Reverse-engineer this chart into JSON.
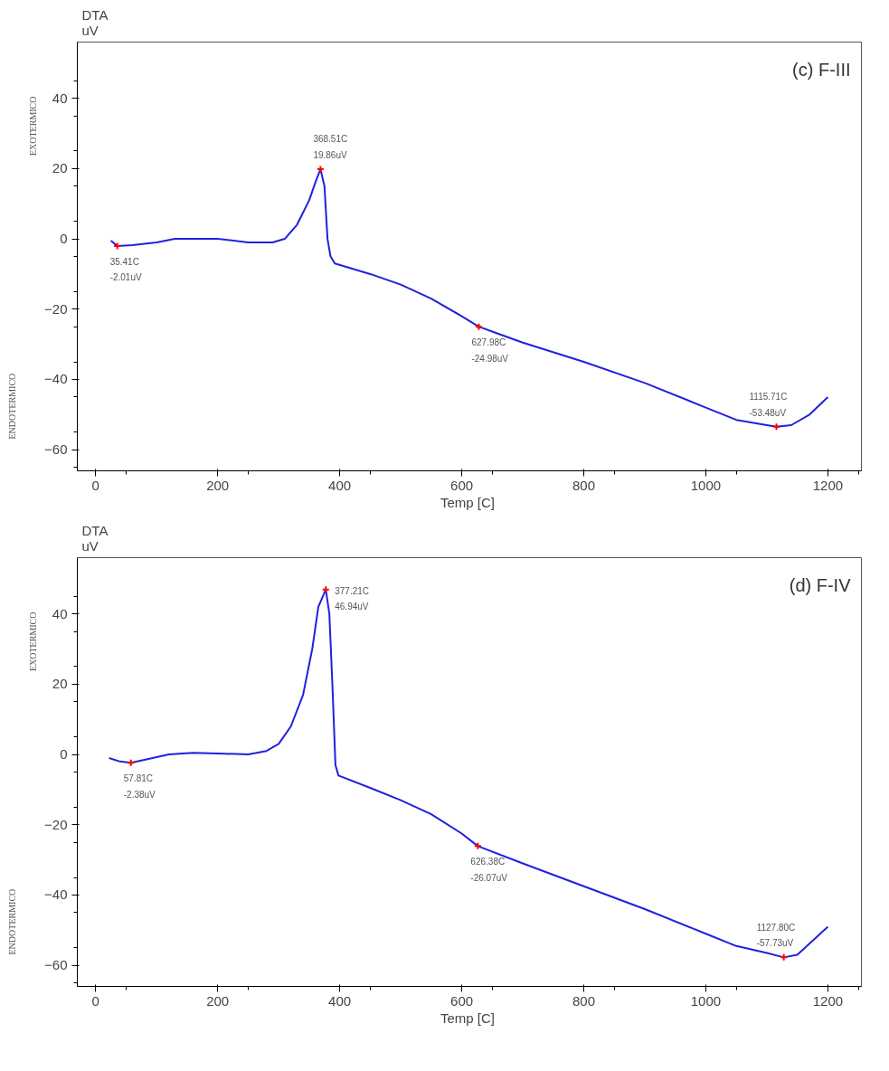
{
  "chart_data": [
    {
      "type": "line",
      "title": "(c) F-III",
      "xlabel": "Temp  [C]",
      "ylabel": "DTA\nuV",
      "xlim": [
        -30,
        1255
      ],
      "ylim": [
        -66,
        56
      ],
      "xticks": [
        0,
        200,
        400,
        600,
        800,
        1000,
        1200
      ],
      "yticks": [
        -60,
        -40,
        -20,
        0,
        20,
        40
      ],
      "grid": false,
      "series": [
        {
          "color": "#2020e0",
          "x": [
            25,
            35.41,
            60,
            100,
            130,
            200,
            250,
            290,
            310,
            330,
            350,
            360,
            368.51,
            375,
            380,
            385,
            392,
            450,
            500,
            550,
            600,
            627.98,
            660,
            700,
            800,
            900,
            1000,
            1050,
            1100,
            1115.71,
            1140,
            1170,
            1200
          ],
          "values": [
            -0.5,
            -2.01,
            -1.8,
            -1,
            0,
            0,
            -1,
            -1,
            0,
            4,
            11,
            16,
            19.86,
            15,
            0,
            -5,
            -7,
            -10,
            -13,
            -17,
            -22,
            -24.98,
            -27,
            -29.5,
            -35,
            -41,
            -48,
            -51.5,
            -53,
            -53.48,
            -53,
            -50,
            -45
          ]
        },
        {
          "type": "scatter",
          "marker": "cross",
          "color": "#ff0000",
          "x": [
            35.41,
            368.51,
            627.98,
            1115.71
          ],
          "values": [
            -2.01,
            19.86,
            -24.98,
            -53.48
          ]
        }
      ],
      "annotations": [
        "EXOTERMICO",
        "ENDOTERMICO",
        {
          "text": "35.41C\n-2.01uV",
          "x": 35.41,
          "y": -2.01
        },
        {
          "text": "368.51C\n19.86uV",
          "x": 368.51,
          "y": 19.86
        },
        {
          "text": "627.98C\n-24.98uV",
          "x": 627.98,
          "y": -24.98
        },
        {
          "text": "1115.71C\n-53.48uV",
          "x": 1115.71,
          "y": -53.48
        }
      ]
    },
    {
      "type": "line",
      "title": "(d) F-IV",
      "xlabel": "Temp  [C]",
      "ylabel": "DTA\nuV",
      "xlim": [
        -30,
        1255
      ],
      "ylim": [
        -66,
        56
      ],
      "xticks": [
        0,
        200,
        400,
        600,
        800,
        1000,
        1200
      ],
      "yticks": [
        -60,
        -40,
        -20,
        0,
        20,
        40
      ],
      "grid": false,
      "series": [
        {
          "color": "#2020e0",
          "x": [
            22,
            40,
            57.81,
            80,
            120,
            160,
            200,
            250,
            280,
            300,
            320,
            340,
            355,
            365,
            377.21,
            383,
            388,
            393,
            398,
            450,
            500,
            550,
            600,
            626.38,
            700,
            800,
            900,
            1000,
            1050,
            1100,
            1127.8,
            1150,
            1175,
            1200
          ],
          "values": [
            -1,
            -2,
            -2.38,
            -1.5,
            0,
            0.5,
            0.3,
            0,
            1,
            3,
            8,
            17,
            30,
            42,
            46.94,
            40,
            20,
            -3,
            -6,
            -9.5,
            -13,
            -17,
            -22.5,
            -26.07,
            -31,
            -37.5,
            -44,
            -51,
            -54.5,
            -56.5,
            -57.73,
            -57,
            -53,
            -49
          ]
        },
        {
          "type": "scatter",
          "marker": "cross",
          "color": "#ff0000",
          "x": [
            57.81,
            377.21,
            626.38,
            1127.8
          ],
          "values": [
            -2.38,
            46.94,
            -26.07,
            -57.73
          ]
        }
      ],
      "annotations": [
        "EXOTERMICO",
        "ENDOTERMICO",
        {
          "text": "57.81C\n-2.38uV",
          "x": 57.81,
          "y": -2.38
        },
        {
          "text": "377.21C\n46.94uV",
          "x": 377.21,
          "y": 46.94
        },
        {
          "text": "626.38C\n-26.07uV",
          "x": 626.38,
          "y": -26.07
        },
        {
          "text": "1127.80C\n-57.73uV",
          "x": 1127.8,
          "y": -57.73
        }
      ]
    }
  ]
}
